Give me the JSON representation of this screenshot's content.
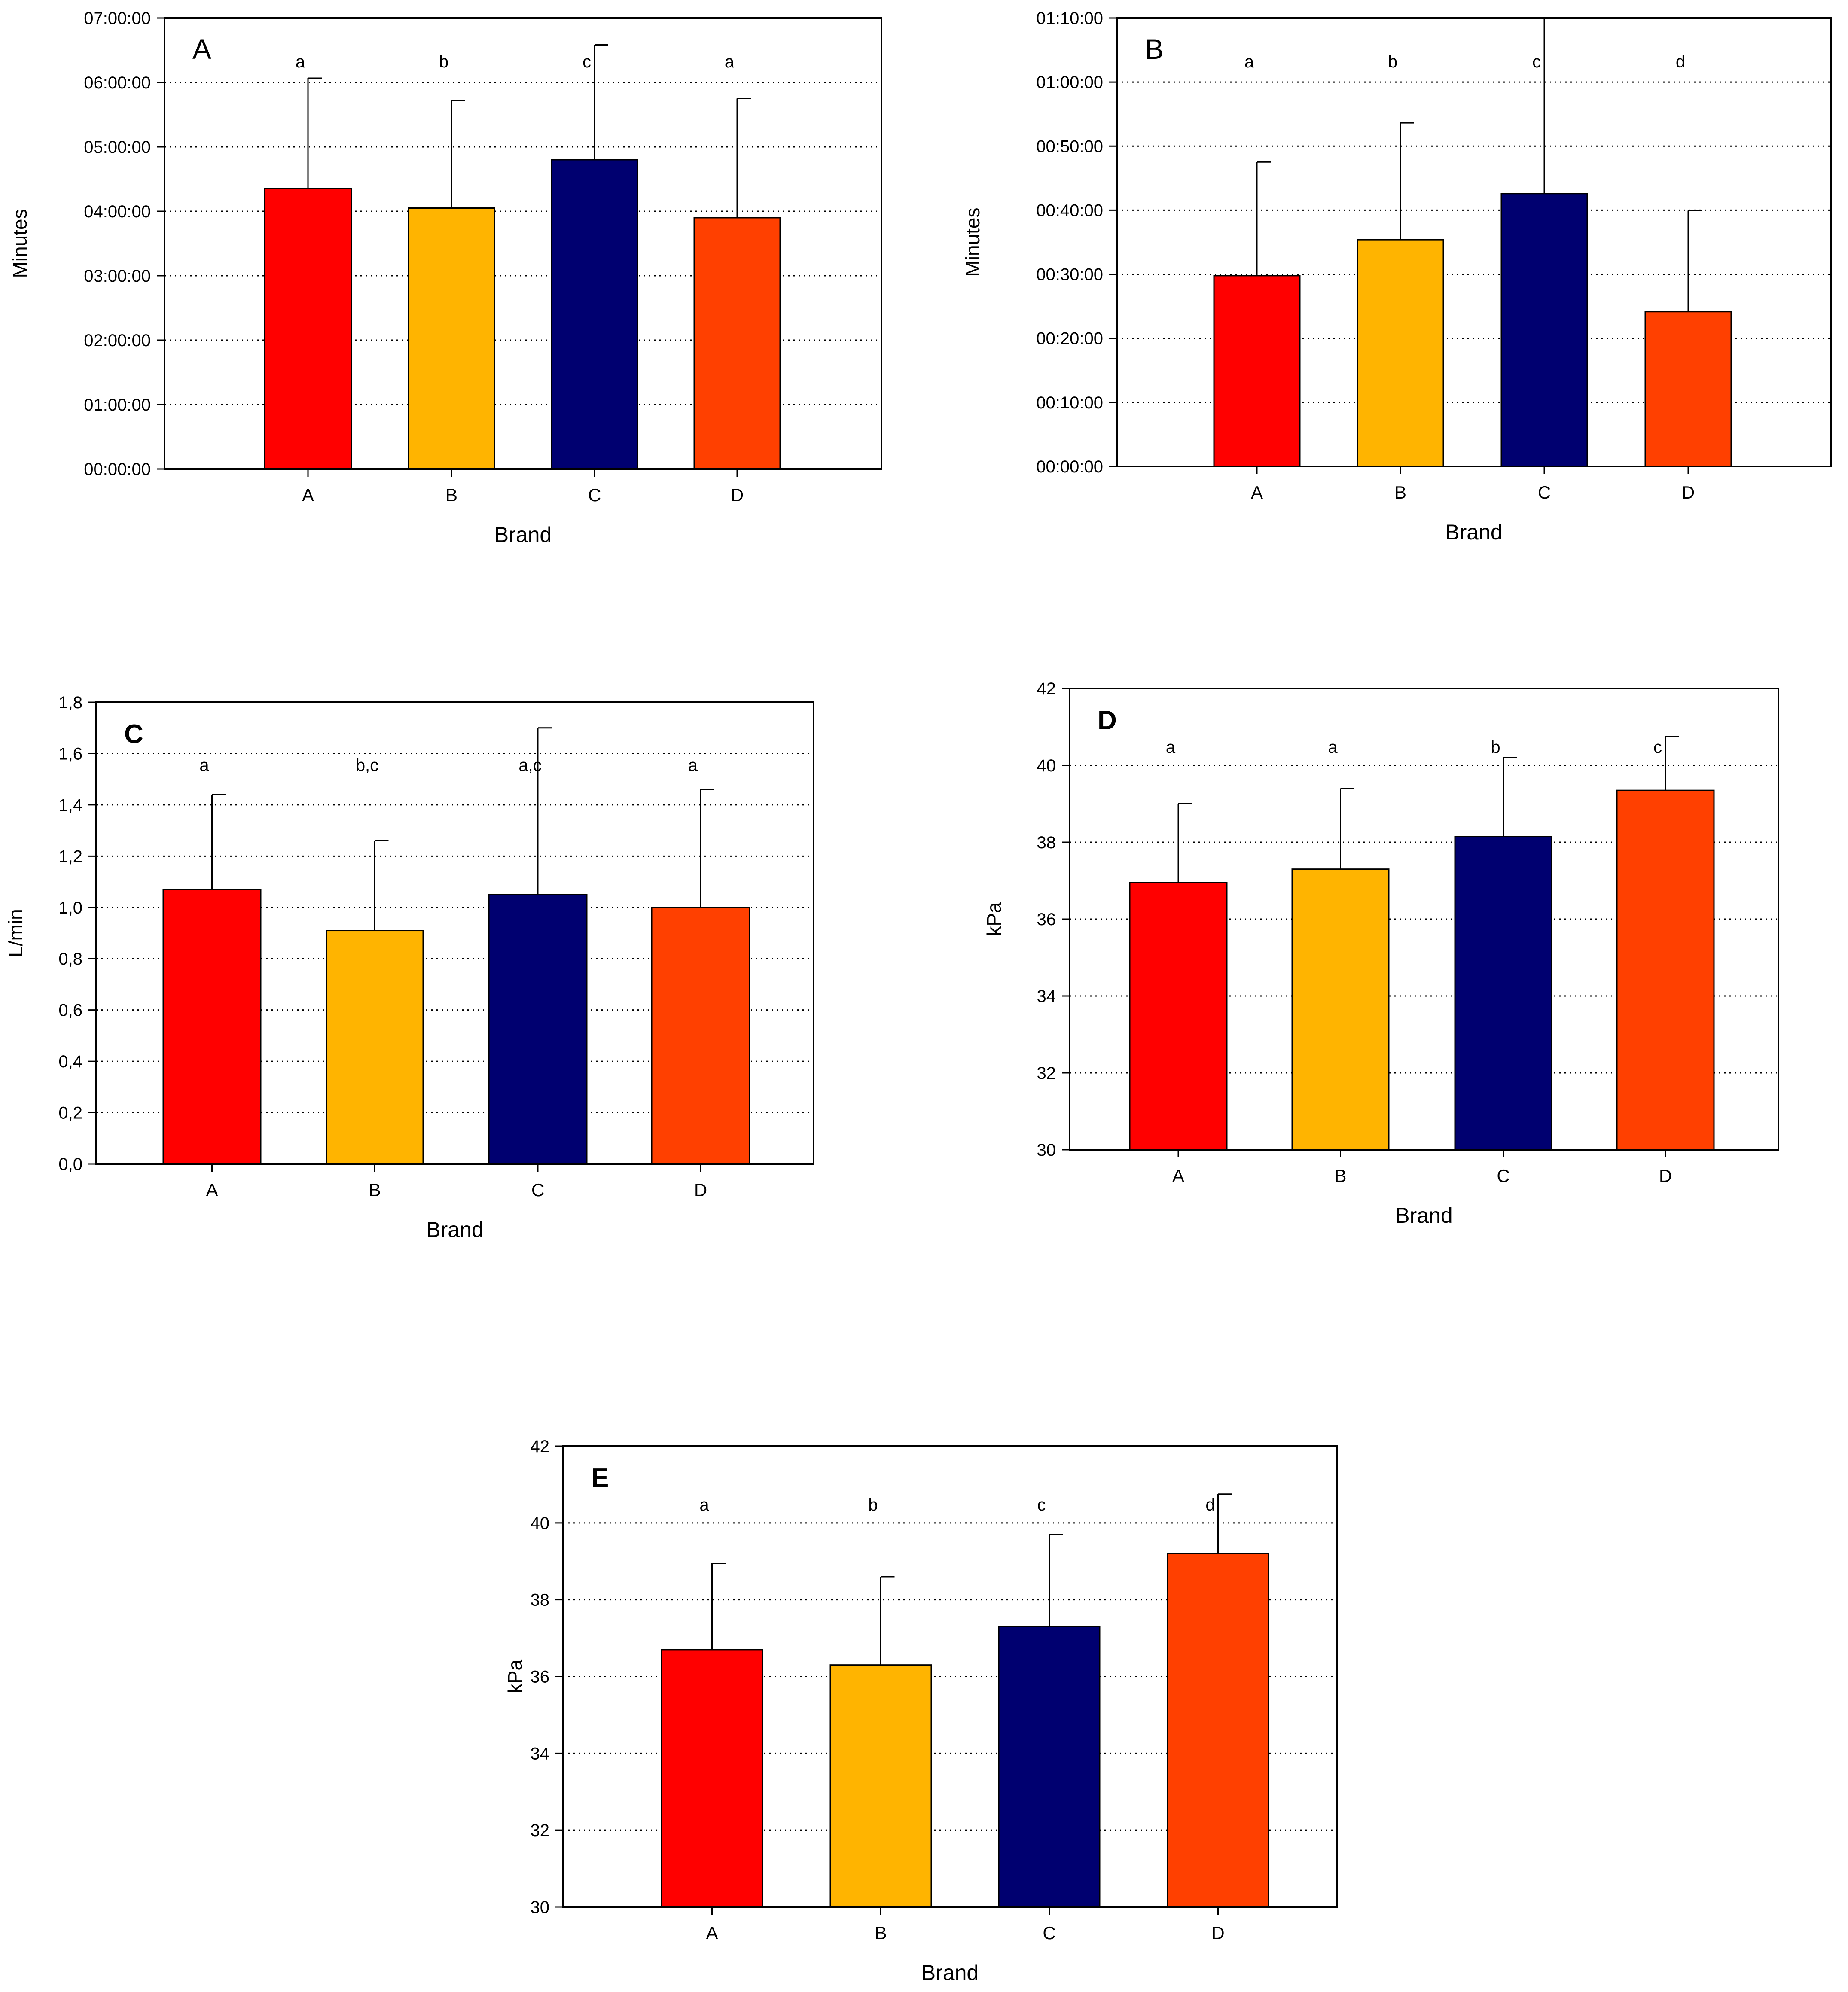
{
  "chart_data": [
    {
      "type": "bar",
      "panel_label": "A",
      "categories": [
        "A",
        "B",
        "C",
        "D"
      ],
      "values_seconds": [
        15660,
        14580,
        17280,
        14040
      ],
      "error_upper_seconds": [
        21840,
        20580,
        23700,
        20700
      ],
      "value_labels": [
        "04:21:00",
        "04:03:00",
        "04:48:00",
        "03:54:00"
      ],
      "significance_letters": [
        "a",
        "b",
        "c",
        "a"
      ],
      "colors": [
        "#ff0000",
        "#ffb400",
        "#000070",
        "#ff4000"
      ],
      "ylim_seconds": [
        0,
        25200
      ],
      "yticks": [
        "00:00:00",
        "01:00:00",
        "02:00:00",
        "03:00:00",
        "04:00:00",
        "05:00:00",
        "06:00:00",
        "07:00:00"
      ],
      "xlabel": "Brand",
      "ylabel": "Minutes",
      "grid": true
    },
    {
      "type": "bar",
      "panel_label": "B",
      "categories": [
        "A",
        "B",
        "C",
        "D"
      ],
      "values_seconds": [
        1812,
        2154,
        2592,
        1470
      ],
      "error_upper_seconds": [
        2892,
        3264,
        4266,
        2430
      ],
      "value_labels": [
        "00:30:12",
        "00:35:54",
        "00:43:12",
        "00:24:30"
      ],
      "significance_letters": [
        "a",
        "b",
        "c",
        "d"
      ],
      "colors": [
        "#ff0000",
        "#ffb400",
        "#000070",
        "#ff4000"
      ],
      "ylim_seconds": [
        0,
        4260
      ],
      "yticks": [
        "00:00:00",
        "00:10:00",
        "00:20:00",
        "00:30:00",
        "00:40:00",
        "00:50:00",
        "01:00:00",
        "01:10:00"
      ],
      "xlabel": "Brand",
      "ylabel": "Minutes",
      "grid": true
    },
    {
      "type": "bar",
      "panel_label": "C",
      "categories": [
        "A",
        "B",
        "C",
        "D"
      ],
      "values": [
        1.07,
        0.91,
        1.05,
        1.0
      ],
      "error_upper": [
        1.44,
        1.26,
        1.7,
        1.46
      ],
      "significance_letters": [
        "a",
        "b,c",
        "a,c",
        "a"
      ],
      "colors": [
        "#ff0000",
        "#ffb400",
        "#000070",
        "#ff4000"
      ],
      "ylim": [
        0,
        1.8
      ],
      "yticks": [
        "0,0",
        "0,2",
        "0,4",
        "0,6",
        "0,8",
        "1,0",
        "1,2",
        "1,4",
        "1,6",
        "1,8"
      ],
      "xlabel": "Brand",
      "ylabel": "L/min",
      "grid": true
    },
    {
      "type": "bar",
      "panel_label": "D",
      "categories": [
        "A",
        "B",
        "C",
        "D"
      ],
      "values": [
        36.95,
        37.3,
        38.15,
        39.35
      ],
      "error_upper": [
        39.0,
        39.4,
        40.2,
        40.75
      ],
      "significance_letters": [
        "a",
        "a",
        "b",
        "c"
      ],
      "colors": [
        "#ff0000",
        "#ffb400",
        "#000070",
        "#ff4000"
      ],
      "ylim": [
        30,
        42
      ],
      "yticks": [
        "30",
        "32",
        "34",
        "36",
        "38",
        "40",
        "42"
      ],
      "xlabel": "Brand",
      "ylabel": "kPa",
      "grid": true
    },
    {
      "type": "bar",
      "panel_label": "E",
      "categories": [
        "A",
        "B",
        "C",
        "D"
      ],
      "values": [
        36.7,
        36.3,
        37.3,
        39.2
      ],
      "error_upper": [
        38.95,
        38.6,
        39.7,
        40.75
      ],
      "significance_letters": [
        "a",
        "b",
        "c",
        "d"
      ],
      "colors": [
        "#ff0000",
        "#ffb400",
        "#000070",
        "#ff4000"
      ],
      "ylim": [
        30,
        42
      ],
      "yticks": [
        "30",
        "32",
        "34",
        "36",
        "38",
        "40",
        "42"
      ],
      "xlabel": "Brand",
      "ylabel": "kPa",
      "grid": true
    }
  ]
}
